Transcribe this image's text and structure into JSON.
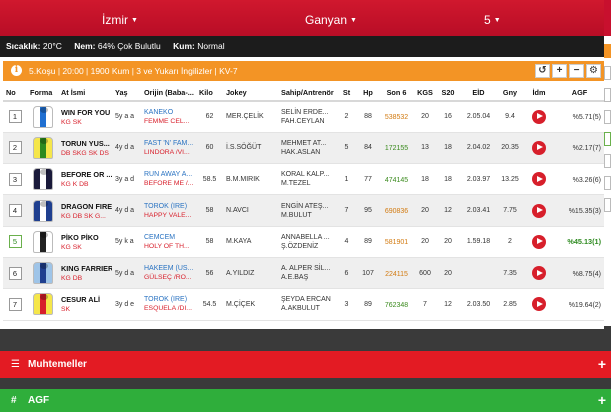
{
  "header": {
    "city": "İzmir",
    "track": "Ganyan",
    "race_no": "5"
  },
  "weather": {
    "temp_label": "Sıcaklık:",
    "temp_value": "20°C",
    "humidity_label": "Nem:",
    "humidity_value": "64% Çok Bulutlu",
    "track_label": "Kum:",
    "track_value": "Normal"
  },
  "race": {
    "info": "5.Koşu | 20:00 | 1900 Kum | 3 ve Yukarı İngilizler | KV-7",
    "tools": [
      "↺",
      "+",
      "−",
      "⚙"
    ]
  },
  "columns": [
    "No",
    "Forma",
    "At İsmi",
    "Yaş",
    "Orijin (Baba-...",
    "Kilo",
    "Jokey",
    "Sahip/Antrenör",
    "St",
    "Hp",
    "Son 6",
    "KGS",
    "S20",
    "EİD",
    "Gny",
    "İdm",
    "AGF"
  ],
  "colors": {
    "brand_red": "#c8102e",
    "orange": "#f39425",
    "green": "#2fae3b",
    "dark": "#1c1c1c"
  },
  "rows": [
    {
      "no": "1",
      "horse": "WIN FOR YOU",
      "horse_sub": "KG SK",
      "age": "5y a a",
      "origin1": "KANEKO",
      "origin2": "FEMME CEL...",
      "kilo": "62",
      "jockey": "MER.ÇELİK",
      "owner1": "SELİN ERDE...",
      "owner2": "FAH.CEYLAN",
      "st": "2",
      "hp": "88",
      "son6": "538532",
      "son6_color": "orange",
      "kgs": "20",
      "s20": "16",
      "eid": "2.05.04",
      "gny": "9.4",
      "agf": "%5.71(5)",
      "silk": [
        "#ffffff",
        "#1f6fd1"
      ]
    },
    {
      "no": "2",
      "horse": "TORUN YUS...",
      "horse_sub": "DB SKG SK DS",
      "age": "4y d a",
      "origin1": "FAST 'N' FAM...",
      "origin2": "LINDORA /VI...",
      "kilo": "60",
      "jockey": "İ.S.SÖĞÜT",
      "owner1": "MEHMET AT...",
      "owner2": "HAK.ASLAN",
      "st": "5",
      "hp": "84",
      "son6": "172155",
      "son6_color": "green",
      "kgs": "13",
      "s20": "18",
      "eid": "2.04.02",
      "gny": "20.35",
      "agf": "%2.17(7)",
      "silk": [
        "#f5e64a",
        "#2d8a1f"
      ]
    },
    {
      "no": "3",
      "horse": "BEFORE OR ...",
      "horse_sub": "KG K DB",
      "age": "3y a d",
      "origin1": "RUN AWAY A...",
      "origin2": "BEFORE ME /...",
      "kilo": "58.5",
      "jockey": "B.M.MIRIK",
      "owner1": "KORAL KALP...",
      "owner2": "M.TEZEL",
      "st": "1",
      "hp": "77",
      "son6": "474145",
      "son6_color": "green",
      "kgs": "18",
      "s20": "18",
      "eid": "2.03.97",
      "gny": "13.25",
      "agf": "%3.26(6)",
      "silk": [
        "#1a1a3a",
        "#ffffff"
      ]
    },
    {
      "no": "4",
      "horse": "DRAGON FIRE",
      "horse_sub": "KG DB SK G...",
      "age": "4y d a",
      "origin1": "TOROK (IRE)",
      "origin2": "HAPPY VALE...",
      "kilo": "58",
      "jockey": "N.AVCI",
      "owner1": "ENGİN ATEŞ...",
      "owner2": "M.BULUT",
      "st": "7",
      "hp": "95",
      "son6": "690836",
      "son6_color": "orange",
      "kgs": "20",
      "s20": "12",
      "eid": "2.03.41",
      "gny": "7.75",
      "agf": "%15.35(3)",
      "silk": [
        "#1f3f8f",
        "#ffffff"
      ]
    },
    {
      "no": "5",
      "horse": "PİKO PİKO",
      "horse_sub": "KG SK",
      "age": "5y k a",
      "origin1": "CEMCEM",
      "origin2": "HOLY OF TH...",
      "kilo": "58",
      "jockey": "M.KAYA",
      "owner1": "ANNABELLA ...",
      "owner2": "Ş.ÖZDENİZ",
      "st": "4",
      "hp": "89",
      "son6": "581901",
      "son6_color": "orange",
      "kgs": "20",
      "s20": "20",
      "eid": "1.59.18",
      "gny": "2",
      "agf": "%45.13(1)",
      "silk": [
        "#ffffff",
        "#222222"
      ],
      "highlight": true
    },
    {
      "no": "6",
      "horse": "KING FARRIER",
      "horse_sub": "KG DB",
      "age": "5y d a",
      "origin1": "HAKEEM (US...",
      "origin2": "GÜLSEÇ /RO...",
      "kilo": "56",
      "jockey": "A.YILDIZ",
      "owner1": "A. ALPER SİL...",
      "owner2": "A.E.BAŞ",
      "st": "6",
      "hp": "107",
      "son6": "224115",
      "son6_color": "orange",
      "kgs": "600",
      "s20": "20",
      "eid": "",
      "gny": "7.35",
      "agf": "%8.75(4)",
      "silk": [
        "#9ec4e8",
        "#1f3f8f"
      ]
    },
    {
      "no": "7",
      "horse": "CESUR ALİ",
      "horse_sub": "SK",
      "age": "3y d e",
      "origin1": "TOROK (IRE)",
      "origin2": "ESQUELA /DI...",
      "kilo": "54.5",
      "jockey": "M.ÇİÇEK",
      "owner1": "ŞEYDA ERCAN",
      "owner2": "A.AKBULUT",
      "st": "3",
      "hp": "89",
      "son6": "762348",
      "son6_color": "green",
      "kgs": "7",
      "s20": "12",
      "eid": "2.03.50",
      "gny": "2.85",
      "agf": "%19.64(2)",
      "silk": [
        "#f5e64a",
        "#d71f2b"
      ]
    }
  ],
  "sections": {
    "muhtemeller": "Muhtemeller",
    "agf": "AGF"
  }
}
